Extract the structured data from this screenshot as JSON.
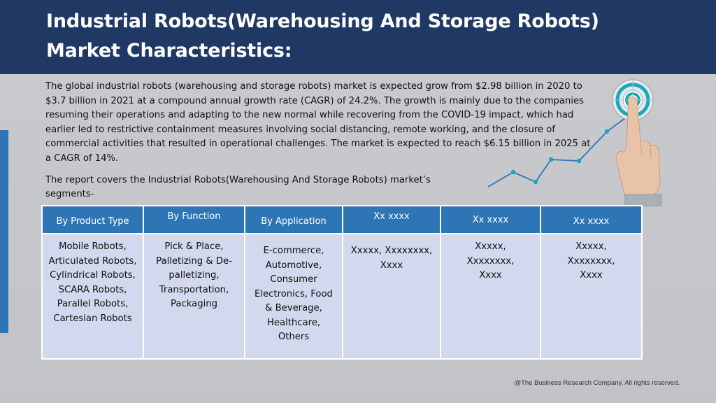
{
  "header": {
    "title": "Industrial Robots(Warehousing And Storage Robots) Market Characteristics:"
  },
  "body": {
    "intro": "The global industrial robots (warehousing and storage robots) market is expected grow from $2.98 billion in 2020 to $3.7 billion in 2021 at a compound annual growth rate (CAGR) of 24.2%. The growth is mainly due to the companies resuming their operations and adapting to the new normal while recovering from the COVID-19 impact, which had earlier led to restrictive containment measures involving social distancing, remote working, and the closure of commercial activities that resulted in operational challenges. The market is expected to reach $6.15 billion in 2025 at a CAGR of 14%.",
    "report": "The report covers the Industrial Robots(Warehousing And Storage Robots) market’s segments-"
  },
  "table": {
    "headers": [
      "By Product Type",
      "By Function",
      "By Application",
      "Xx xxxx",
      "Xx xxxx",
      "Xx xxxx"
    ],
    "cells": [
      [
        "Mobile Robots,",
        "Articulated Robots,",
        "Cylindrical Robots,",
        "SCARA Robots,",
        "Parallel Robots,",
        "Cartesian Robots"
      ],
      [
        "Pick & Place,",
        "Palletizing & De-",
        "palletizing,",
        "Transportation,",
        "Packaging"
      ],
      [
        "E-commerce,",
        "Automotive,",
        "Consumer",
        "Electronics, Food",
        "& Beverage,",
        "Healthcare,",
        "Others"
      ],
      [
        "Xxxxx, Xxxxxxxx,",
        "Xxxx"
      ],
      [
        "Xxxxx,",
        "Xxxxxxxx,",
        "Xxxx"
      ],
      [
        "Xxxxx,",
        "Xxxxxxxx,",
        "Xxxx"
      ]
    ]
  },
  "footer": {
    "copyright": "@The Business Research Company. All rights reserved."
  },
  "graphic": {
    "icon": "target-touch-growth-icon",
    "colors": {
      "accent": "#2e75b6",
      "teal": "#19a9b8",
      "skin": "#e9c3a8"
    }
  }
}
